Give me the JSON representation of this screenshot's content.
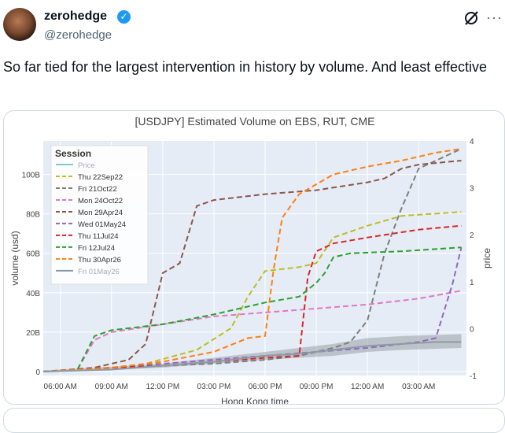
{
  "tweet": {
    "display_name": "zerohedge",
    "handle": "@zerohedge",
    "text": "So far tied for the largest intervention in history by volume. And least effective",
    "icons": {
      "verified": "verified-badge-icon",
      "grok": "grok-icon",
      "more": "more-options-icon"
    }
  },
  "chart_data": {
    "type": "line",
    "title": "[USDJPY] Estimated Volume on EBS, RUT, CME",
    "xlabel": "Hong Kong time",
    "ylabel": "volume (usd)",
    "y2label": "price",
    "x_ticks": [
      "06:00 AM",
      "09:00 AM",
      "12:00 PM",
      "03:00 PM",
      "06:00 PM",
      "09:00 PM",
      "12:00 AM",
      "03:00 AM"
    ],
    "y_ticks": [
      "0",
      "20B",
      "40B",
      "60B",
      "80B",
      "100B"
    ],
    "y2_ticks": [
      "-1",
      "0",
      "1",
      "2",
      "3",
      "4"
    ],
    "x_unit": "hours since 06:00 AM",
    "xlim": [
      -1,
      23.8
    ],
    "ylim": [
      -2,
      117
    ],
    "y2lim": [
      -1,
      4
    ],
    "legend_title": "Session",
    "legend_position": "top-left",
    "series": [
      {
        "name": "Price",
        "color": "#7fc6d6",
        "dash": "solid",
        "points": []
      },
      {
        "name": "Thu 22Sep22",
        "color": "#bcbd22",
        "dash": "dash",
        "points": [
          [
            -1,
            0
          ],
          [
            2,
            1
          ],
          [
            5,
            4
          ],
          [
            8,
            11
          ],
          [
            10,
            22
          ],
          [
            11,
            38
          ],
          [
            12,
            51
          ],
          [
            13,
            52
          ],
          [
            14,
            53
          ],
          [
            15,
            55
          ],
          [
            16,
            68
          ],
          [
            18,
            74
          ],
          [
            20,
            79
          ],
          [
            23.5,
            81
          ]
        ]
      },
      {
        "name": "Fri 21Oct22",
        "color": "#7f7f7f",
        "dash": "dash",
        "points": [
          [
            -1,
            0
          ],
          [
            3,
            2
          ],
          [
            6,
            3
          ],
          [
            9,
            4
          ],
          [
            12,
            6
          ],
          [
            14,
            8
          ],
          [
            16,
            12
          ],
          [
            17,
            15
          ],
          [
            18,
            26
          ],
          [
            19,
            60
          ],
          [
            20,
            83
          ],
          [
            21,
            103
          ],
          [
            23.5,
            113
          ]
        ]
      },
      {
        "name": "Mon 24Oct22",
        "color": "#e377c2",
        "dash": "dash",
        "points": [
          [
            -1,
            0
          ],
          [
            1,
            1
          ],
          [
            2,
            16
          ],
          [
            3,
            20
          ],
          [
            6,
            24
          ],
          [
            9,
            28
          ],
          [
            12,
            30
          ],
          [
            15,
            32
          ],
          [
            18,
            34
          ],
          [
            21,
            37
          ],
          [
            23.5,
            41
          ]
        ]
      },
      {
        "name": "Mon 29Apr24",
        "color": "#8c564b",
        "dash": "dash",
        "points": [
          [
            -1,
            0
          ],
          [
            2,
            2
          ],
          [
            4,
            6
          ],
          [
            5,
            14
          ],
          [
            6,
            50
          ],
          [
            7,
            55
          ],
          [
            8,
            84
          ],
          [
            9,
            87
          ],
          [
            12,
            90
          ],
          [
            15,
            92
          ],
          [
            18,
            96
          ],
          [
            19,
            98
          ],
          [
            20,
            103
          ],
          [
            21,
            105
          ],
          [
            23.5,
            107
          ]
        ]
      },
      {
        "name": "Wed 01May24",
        "color": "#9467bd",
        "dash": "dash",
        "points": [
          [
            -1,
            0
          ],
          [
            3,
            2
          ],
          [
            6,
            4
          ],
          [
            9,
            6
          ],
          [
            12,
            8
          ],
          [
            15,
            10
          ],
          [
            18,
            12
          ],
          [
            21,
            15
          ],
          [
            22,
            17
          ],
          [
            23,
            45
          ],
          [
            23.5,
            63
          ]
        ]
      },
      {
        "name": "Thu 11Jul24",
        "color": "#d62728",
        "dash": "dash",
        "points": [
          [
            -1,
            0
          ],
          [
            3,
            2
          ],
          [
            6,
            3
          ],
          [
            9,
            5
          ],
          [
            12,
            7
          ],
          [
            14,
            8
          ],
          [
            14.5,
            48
          ],
          [
            15,
            61
          ],
          [
            16,
            65
          ],
          [
            18,
            68
          ],
          [
            21,
            72
          ],
          [
            23.5,
            74
          ]
        ]
      },
      {
        "name": "Fri 12Jul24",
        "color": "#2ca02c",
        "dash": "dash",
        "points": [
          [
            -1,
            0
          ],
          [
            1,
            1
          ],
          [
            2,
            18
          ],
          [
            3,
            21
          ],
          [
            6,
            24
          ],
          [
            9,
            29
          ],
          [
            12,
            35
          ],
          [
            14,
            38
          ],
          [
            15,
            45
          ],
          [
            15.5,
            50
          ],
          [
            16,
            58
          ],
          [
            17,
            60
          ],
          [
            20,
            61
          ],
          [
            23.5,
            63
          ]
        ]
      },
      {
        "name": "Thu 30Apr26",
        "color": "#ff7f0e",
        "dash": "dash",
        "points": [
          [
            -1,
            0
          ],
          [
            3,
            2
          ],
          [
            6,
            5
          ],
          [
            9,
            10
          ],
          [
            11,
            17
          ],
          [
            12,
            18
          ],
          [
            12.5,
            52
          ],
          [
            13,
            78
          ],
          [
            14,
            90
          ],
          [
            15,
            95
          ],
          [
            16,
            100
          ],
          [
            18,
            104
          ],
          [
            20,
            107
          ],
          [
            22,
            111
          ],
          [
            23.5,
            113
          ]
        ]
      },
      {
        "name": "Fri 01May26",
        "color": "#8c9aa6",
        "dash": "solid",
        "points": [
          [
            -1,
            0
          ],
          [
            3,
            1
          ],
          [
            6,
            3
          ],
          [
            9,
            5
          ],
          [
            12,
            8
          ],
          [
            14,
            9
          ],
          [
            16,
            11
          ],
          [
            18,
            13
          ],
          [
            20,
            14
          ],
          [
            22,
            15
          ],
          [
            23.5,
            15
          ]
        ],
        "band": [
          [
            -1,
            0,
            0.5
          ],
          [
            6,
            2,
            4
          ],
          [
            12,
            6,
            10
          ],
          [
            16,
            8,
            14
          ],
          [
            18,
            10,
            17
          ],
          [
            20,
            11,
            18
          ],
          [
            23.5,
            12,
            19
          ]
        ]
      }
    ]
  }
}
